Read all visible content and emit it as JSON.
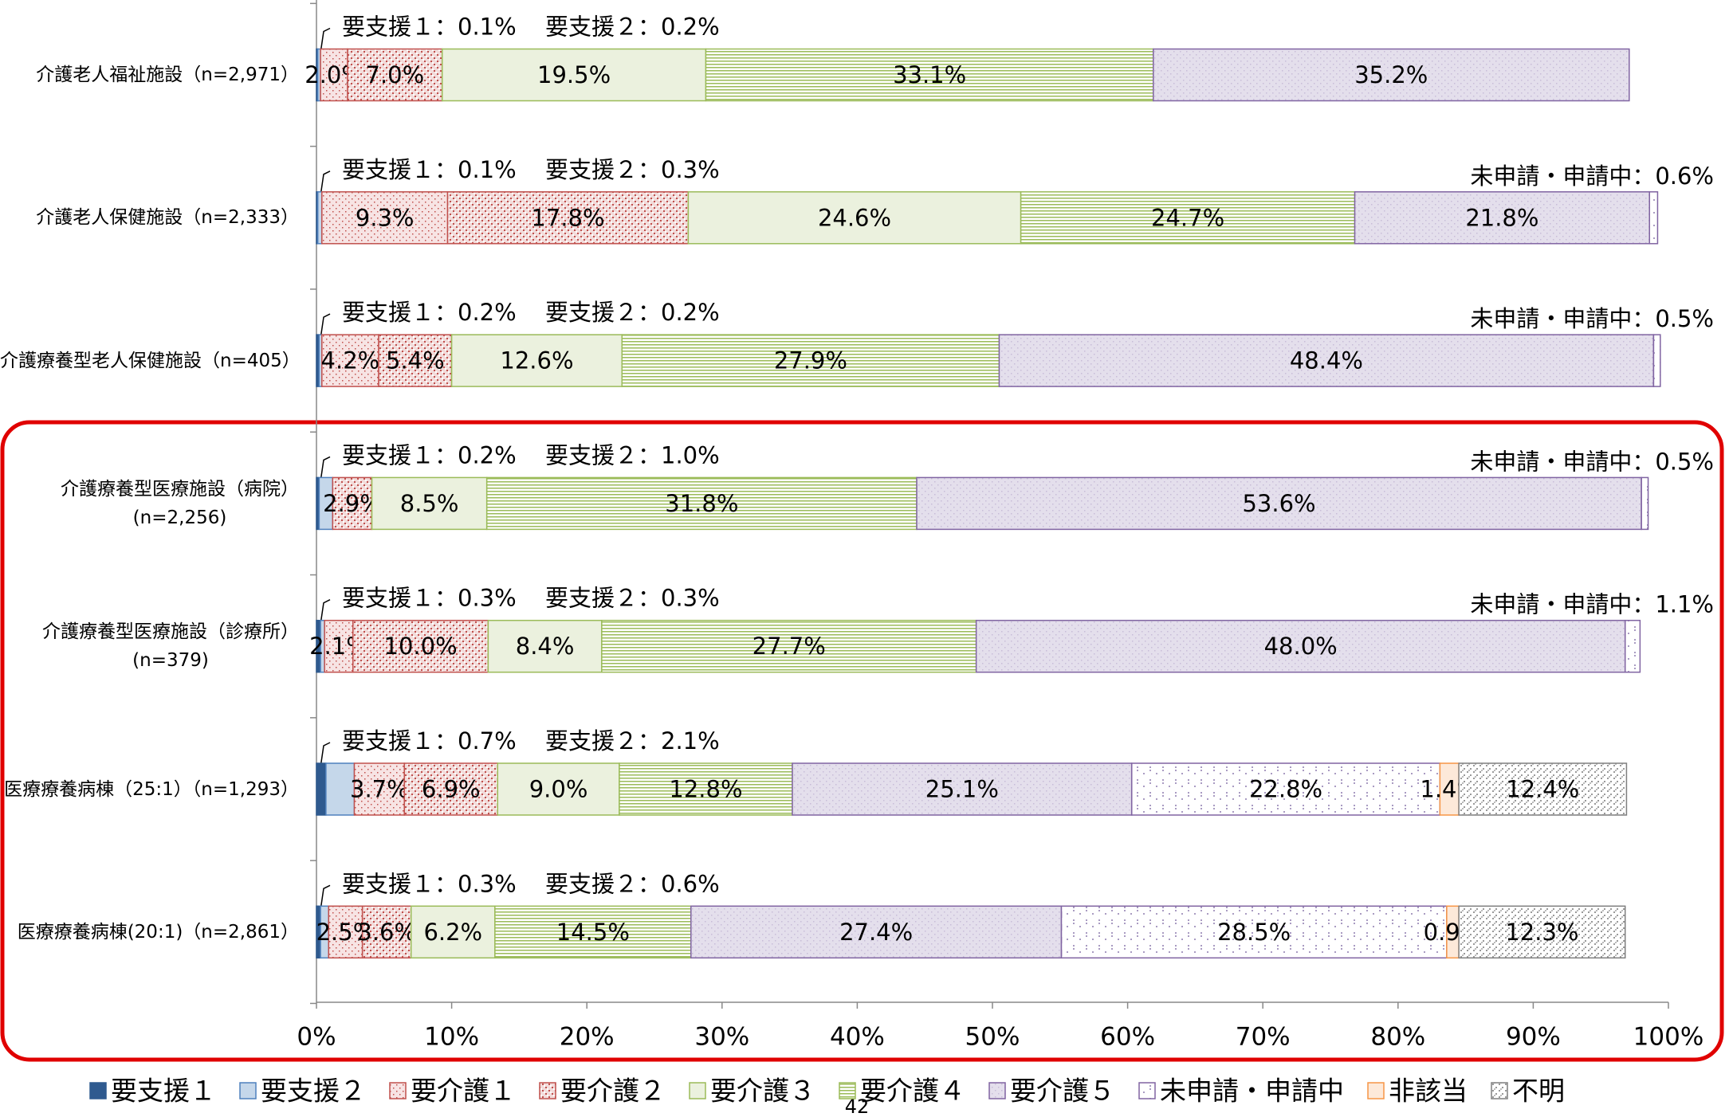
{
  "chart_data": {
    "type": "stacked_bar_horizontal",
    "categories": [
      "介護老人福祉施設（n=2,971）",
      "介護老人保健施設（n=2,333）",
      "介護療養型老人保健施設（n=405）",
      "介護療養型医療施設（病院）\n(n=2,256)",
      "介護療養型医療施設（診療所）\n(n=379)",
      "医療療養病棟（25:1）（n=1,293）",
      "医療療養病棟(20:1)（n=2,861）"
    ],
    "series": [
      {
        "name": "要支援１",
        "color": "#2f5a8f",
        "fill": "#2f5a8f",
        "pattern": "solid",
        "values": [
          0.1,
          0.1,
          0.2,
          0.2,
          0.3,
          0.7,
          0.3
        ],
        "value_labels": [
          "要支援１：0.1%",
          "要支援１：0.1%",
          "要支援１：0.2%",
          "要支援１：0.2%",
          "要支援１：0.3%",
          "要支援１：0.7%",
          "要支援１：0.3%"
        ]
      },
      {
        "name": "要支援２",
        "color": "#4f81bd",
        "fill": "#c5d7ea",
        "pattern": "solid",
        "values": [
          0.2,
          0.3,
          0.2,
          1.0,
          0.3,
          2.1,
          0.6
        ],
        "value_labels": [
          "要支援２：0.2%",
          "要支援２：0.3%",
          "要支援２：0.2%",
          "要支援２：1.0%",
          "要支援２：0.3%",
          "要支援２：2.1%",
          "要支援２：0.6%"
        ]
      },
      {
        "name": "要介護１",
        "color": "#c0504d",
        "fill": "#f7e4e4",
        "pattern": "dots",
        "values": [
          2.0,
          9.3,
          4.2,
          null,
          2.1,
          3.7,
          2.5
        ],
        "value_labels": [
          "2.0%",
          "9.3%",
          "4.2%",
          null,
          "2.1%",
          "3.7%",
          "2.5%"
        ]
      },
      {
        "name": "要介護２",
        "color": "#c0504d",
        "fill": "#f2dcdb",
        "pattern": "checker",
        "values": [
          7.0,
          17.8,
          5.4,
          2.9,
          10.0,
          6.9,
          3.6
        ],
        "value_labels": [
          "7.0%",
          "17.8%",
          "5.4%",
          "2.9%",
          "10.0%",
          "6.9%",
          "3.6%"
        ]
      },
      {
        "name": "要介護３",
        "color": "#9bbb59",
        "fill": "#ebf1de",
        "pattern": "solid",
        "values": [
          19.5,
          24.6,
          12.6,
          8.5,
          8.4,
          9.0,
          6.2
        ],
        "value_labels": [
          "19.5%",
          "24.6%",
          "12.6%",
          "8.5%",
          "8.4%",
          "9.0%",
          "6.2%"
        ]
      },
      {
        "name": "要介護４",
        "color": "#9bbb59",
        "fill": "#ffffff",
        "pattern": "hlines",
        "values": [
          33.1,
          24.7,
          27.9,
          31.8,
          27.7,
          12.8,
          14.5
        ],
        "value_labels": [
          "33.1%",
          "24.7%",
          "27.9%",
          "31.8%",
          "27.7%",
          "12.8%",
          "14.5%"
        ]
      },
      {
        "name": "要介護５",
        "color": "#8064a2",
        "fill": "#e4dfec",
        "pattern": "fine",
        "values": [
          35.2,
          21.8,
          48.4,
          53.6,
          48.0,
          25.1,
          27.4
        ],
        "value_labels": [
          "35.2%",
          "21.8%",
          "48.4%",
          "53.6%",
          "48.0%",
          "25.1%",
          "27.4%"
        ]
      },
      {
        "name": "未申請・申請中",
        "color": "#8064a2",
        "fill": "#ffffff",
        "pattern": "sparse",
        "values": [
          null,
          0.6,
          0.5,
          0.5,
          1.1,
          22.8,
          28.5
        ],
        "value_labels": [
          null,
          "未申請・申請中：0.6%",
          "未申請・申請中：0.5%",
          "未申請・申請中：0.5%",
          "未申請・申請中：1.1%",
          "22.8%",
          "28.5%"
        ]
      },
      {
        "name": "非該当",
        "color": "#f79646",
        "fill": "#fde9d9",
        "pattern": "solid",
        "values": [
          null,
          null,
          null,
          null,
          null,
          1.4,
          0.9
        ],
        "value_labels": [
          null,
          null,
          null,
          null,
          null,
          "1.4%",
          "0.9%"
        ]
      },
      {
        "name": "不明",
        "color": "#7f7f7f",
        "fill": "#ffffff",
        "pattern": "greychecker",
        "values": [
          null,
          null,
          null,
          null,
          null,
          12.4,
          12.3
        ],
        "value_labels": [
          null,
          null,
          null,
          null,
          null,
          "12.4%",
          "12.3%"
        ]
      }
    ],
    "xlim": [
      0,
      100
    ],
    "xticks": [
      {
        "value": 0,
        "label": "0%"
      },
      {
        "value": 10,
        "label": "10%"
      },
      {
        "value": 20,
        "label": "20%"
      },
      {
        "value": 30,
        "label": "30%"
      },
      {
        "value": 40,
        "label": "40%"
      },
      {
        "value": 50,
        "label": "50%"
      },
      {
        "value": 60,
        "label": "60%"
      },
      {
        "value": 70,
        "label": "70%"
      },
      {
        "value": 80,
        "label": "80%"
      },
      {
        "value": 90,
        "label": "90%"
      },
      {
        "value": 100,
        "label": "100%"
      }
    ],
    "legend": "bottom"
  },
  "page_number": "42"
}
